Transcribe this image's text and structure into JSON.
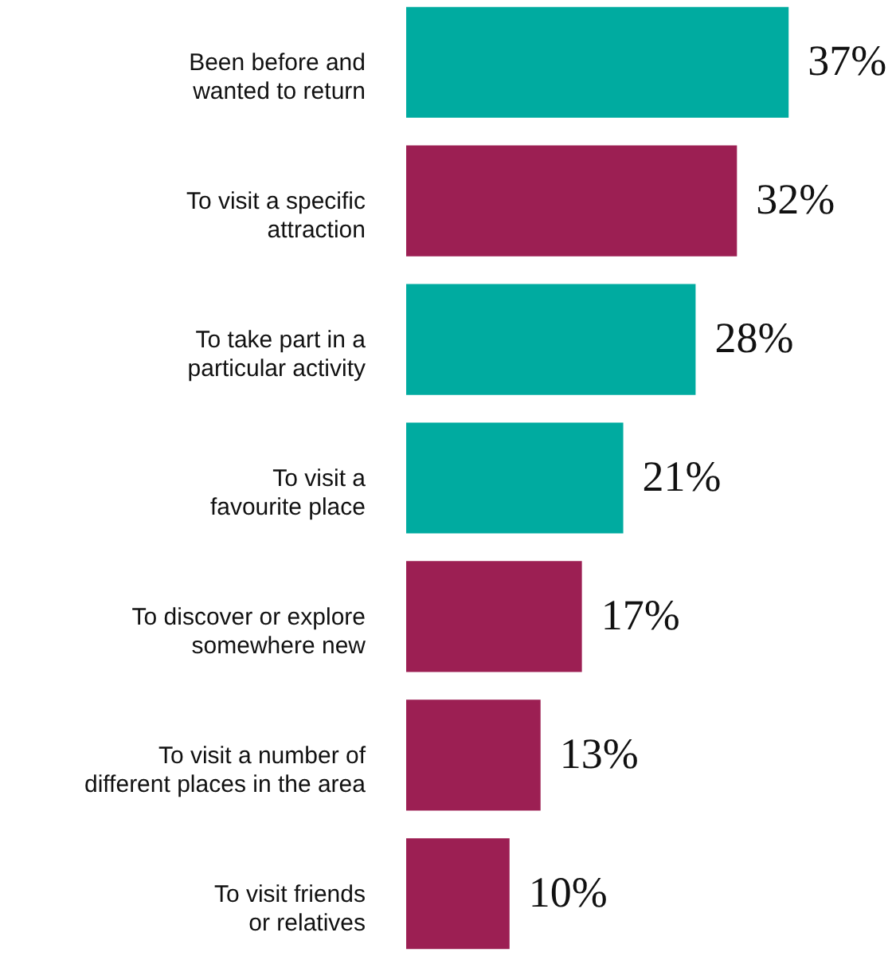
{
  "chart_data": {
    "type": "bar",
    "orientation": "horizontal",
    "categories": [
      "Been before and\nwanted to return",
      "To visit a specific\nattraction",
      "To take part in a\nparticular activity",
      "To visit a\nfavourite place",
      "To discover or explore\nsomewhere new",
      "To visit a number of\ndifferent places in the area",
      "To visit friends\nor relatives"
    ],
    "values": [
      37,
      32,
      28,
      21,
      17,
      13,
      10
    ],
    "colors": [
      "#00aba0",
      "#9c1f53",
      "#00aba0",
      "#00aba0",
      "#9c1f53",
      "#9c1f53",
      "#9c1f53"
    ],
    "value_labels": [
      "37%",
      "32%",
      "28%",
      "21%",
      "17%",
      "13%",
      "10%"
    ],
    "xlim": [
      0,
      47
    ]
  }
}
